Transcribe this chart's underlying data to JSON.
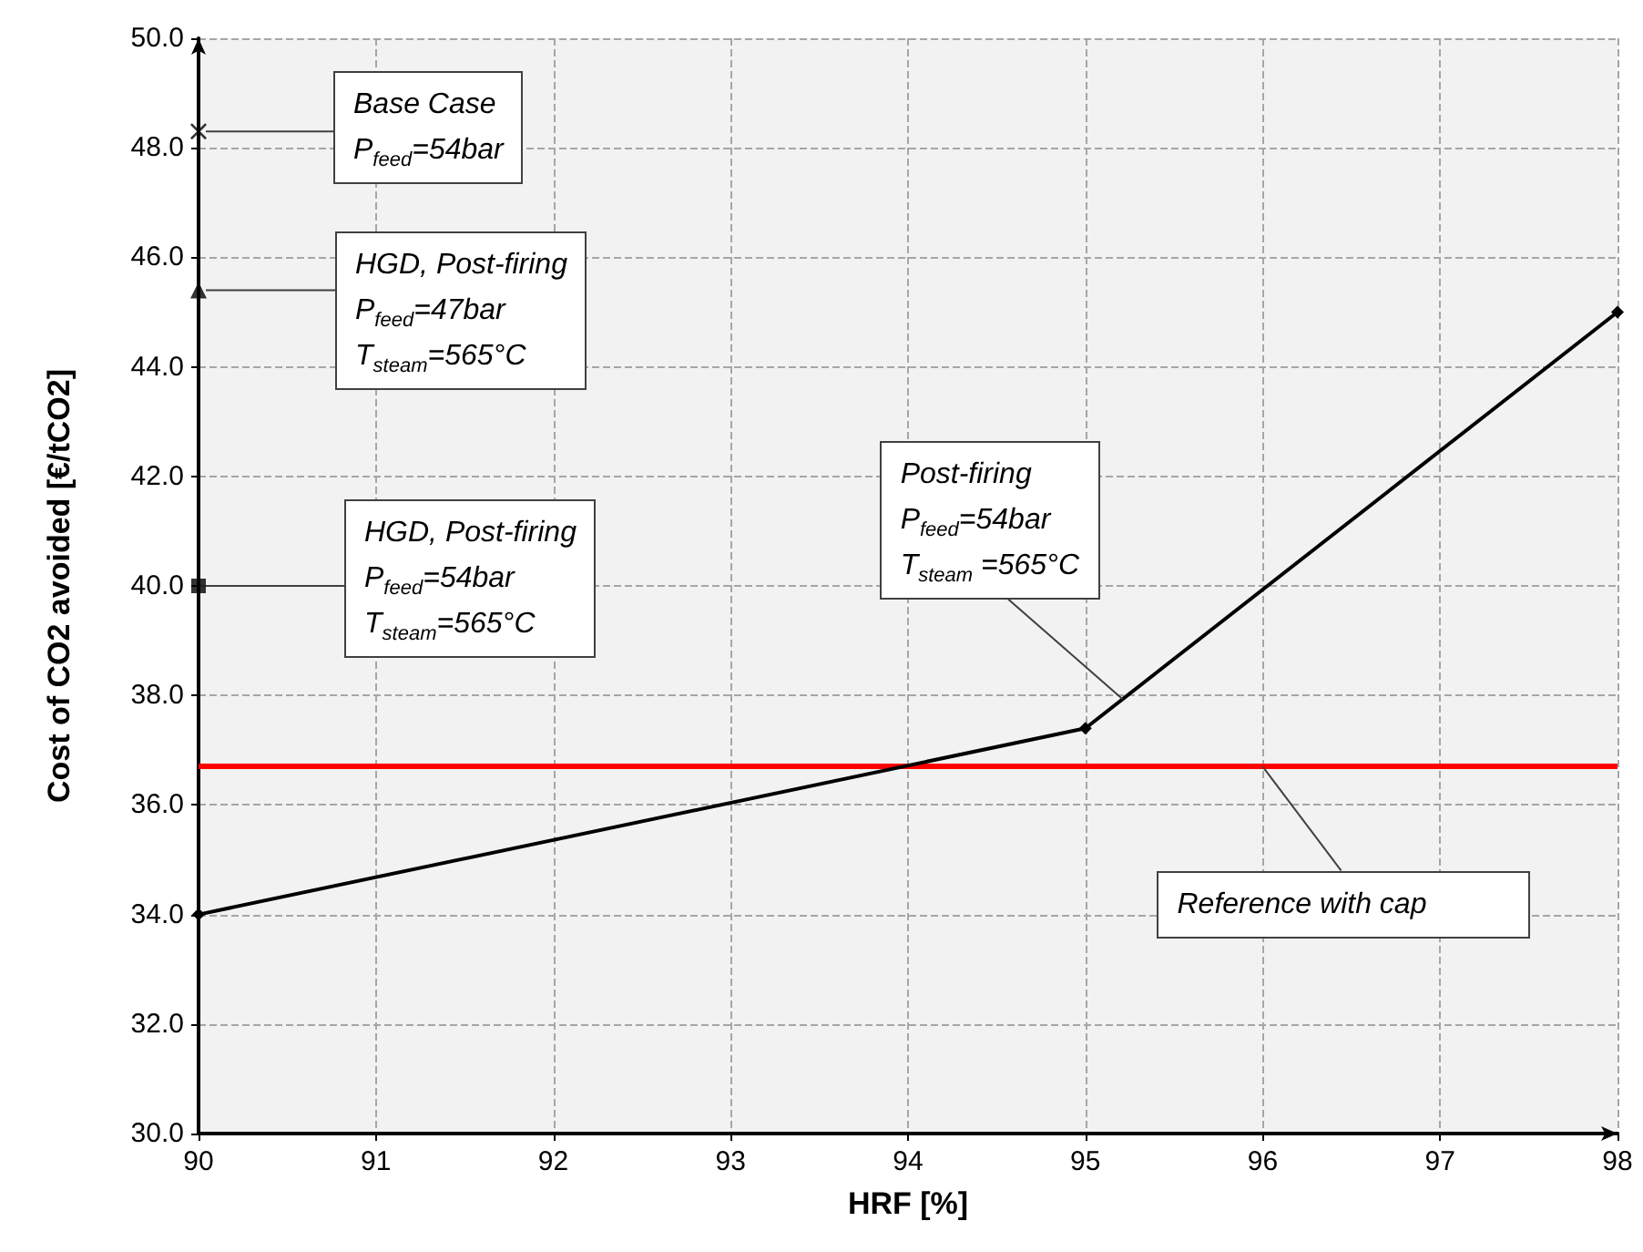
{
  "chart_data": {
    "type": "line",
    "xlabel": "HRF [%]",
    "ylabel": "Cost of CO2 avoided [€/tCO2]",
    "xlim": [
      90,
      98
    ],
    "xticks": [
      90,
      91,
      92,
      93,
      94,
      95,
      96,
      97,
      98
    ],
    "ylim": [
      30,
      50
    ],
    "yticks": [
      {
        "value": 30,
        "label": "30.0"
      },
      {
        "value": 32,
        "label": "32.0"
      },
      {
        "value": 34,
        "label": "34.0"
      },
      {
        "value": 36,
        "label": "36.0"
      },
      {
        "value": 38,
        "label": "38.0"
      },
      {
        "value": 40,
        "label": "40.0"
      },
      {
        "value": 42,
        "label": "42.0"
      },
      {
        "value": 44,
        "label": "44.0"
      },
      {
        "value": 46,
        "label": "46.0"
      },
      {
        "value": 48,
        "label": "48.0"
      },
      {
        "value": 50,
        "label": "50.0"
      }
    ],
    "grid": true,
    "series": [
      {
        "type": "line",
        "color": "#000000",
        "marker": "diamond",
        "x": [
          90,
          95,
          98
        ],
        "values": [
          34.0,
          37.4,
          45.0
        ]
      },
      {
        "type": "scatter",
        "color": "#000000",
        "marker": "cross",
        "x": [
          90
        ],
        "values": [
          48.3
        ]
      },
      {
        "type": "scatter",
        "color": "#000000",
        "marker": "triangle",
        "x": [
          90
        ],
        "values": [
          45.4
        ]
      },
      {
        "type": "scatter",
        "color": "#000000",
        "marker": "square",
        "x": [
          90
        ],
        "values": [
          40.0
        ]
      }
    ],
    "ref_lines": [
      {
        "axis": "y",
        "value": 36.7,
        "label": "Reference with cap",
        "color": "#ff0000"
      }
    ],
    "annotations": [
      "Base Case\nP$_{feed}$=54bar",
      "HGD, Post-firing\nP$_{feed}$=47bar\nT$_{steam}$=565°C",
      "HGD, Post-firing\nP$_{feed}$=54bar\nT$_{steam}$=565°C",
      "Post-firing\nP$_{feed}$=54bar\nT$_{steam}$ =565°C"
    ]
  }
}
